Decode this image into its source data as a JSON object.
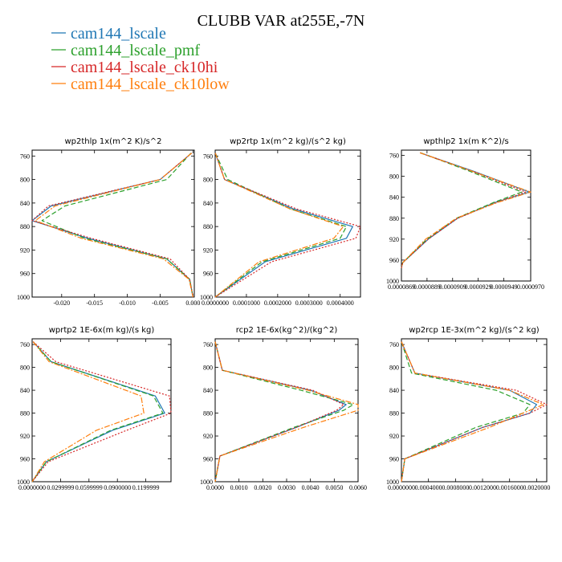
{
  "title": "CLUBB VAR at255E,-7N",
  "legend": [
    {
      "label": "cam144_lscale",
      "color": "#1f77b4",
      "dash": "solid"
    },
    {
      "label": "cam144_lscale_pmf",
      "color": "#2ca02c",
      "dash": "dashed"
    },
    {
      "label": "cam144_lscale_ck10hi",
      "color": "#d62728",
      "dash": "dotted"
    },
    {
      "label": "cam144_lscale_ck10low",
      "color": "#ff7f0e",
      "dash": "dashdot"
    }
  ],
  "chart_data": [
    {
      "type": "line",
      "title": "wp2thlp  1x(m^2 K)/s^2",
      "ylim": [
        1000,
        750
      ],
      "yticks": [
        "760",
        "800",
        "840",
        "880",
        "920",
        "960",
        "1000"
      ],
      "xlim": [
        -0.0245,
        0.0002
      ],
      "xticks": [
        "-0.020",
        "-0.015",
        "-0.010",
        "-0.005",
        "0.000"
      ],
      "y": [
        755,
        800,
        845,
        870,
        900,
        935,
        970,
        1000
      ],
      "series": [
        {
          "name": "cam144_lscale",
          "values": [
            -0.0002,
            -0.005,
            -0.0216,
            -0.0245,
            -0.016,
            -0.004,
            -0.0005,
            0.0
          ]
        },
        {
          "name": "cam144_lscale_pmf",
          "values": [
            -0.0003,
            -0.004,
            -0.0195,
            -0.023,
            -0.0165,
            -0.004,
            -0.0005,
            0.0
          ]
        },
        {
          "name": "cam144_lscale_ck10hi",
          "values": [
            -0.0002,
            -0.005,
            -0.022,
            -0.0245,
            -0.0155,
            -0.0035,
            -0.0005,
            0.0
          ]
        },
        {
          "name": "cam144_lscale_ck10low",
          "values": [
            -0.0002,
            -0.005,
            -0.021,
            -0.024,
            -0.017,
            -0.0045,
            -0.0006,
            0.0
          ]
        }
      ]
    },
    {
      "type": "line",
      "title": "wp2rtp  1x(m^2 kg)/(s^2 kg)",
      "ylim": [
        1000,
        750
      ],
      "yticks": [
        "760",
        "800",
        "840",
        "880",
        "920",
        "960",
        "1000"
      ],
      "xlim": [
        0,
        0.000465
      ],
      "xticks": [
        "0.0000000",
        "0.0001000",
        "0.0002000",
        "0.0003000",
        "0.0004000"
      ],
      "y": [
        755,
        800,
        850,
        880,
        900,
        940,
        1000
      ],
      "series": [
        {
          "name": "cam144_lscale",
          "values": [
            5e-07,
            3e-05,
            0.00025,
            0.00044,
            0.00042,
            0.00016,
            0.0
          ]
        },
        {
          "name": "cam144_lscale_pmf",
          "values": [
            5e-07,
            4e-05,
            0.00024,
            0.00042,
            0.0004,
            0.00015,
            0.0
          ]
        },
        {
          "name": "cam144_lscale_ck10hi",
          "values": [
            5e-07,
            3e-05,
            0.00026,
            0.000465,
            0.00045,
            0.00018,
            0.0
          ]
        },
        {
          "name": "cam144_lscale_ck10low",
          "values": [
            5e-07,
            3e-05,
            0.00024,
            0.00041,
            0.00038,
            0.00014,
            0.0
          ]
        }
      ]
    },
    {
      "type": "line",
      "title": "wpthlp2  1x(m K^2)/s",
      "ylim": [
        1000,
        750
      ],
      "yticks": [
        "760",
        "800",
        "840",
        "880",
        "920",
        "960",
        "1000"
      ],
      "xlim": [
        8.69e-05,
        9.7e-05
      ],
      "xticks": [
        "0.0000869",
        "0.0000889",
        "0.0000909",
        "0.0000929",
        "0.0000949",
        "0.0000970"
      ],
      "y": [
        755,
        790,
        830,
        850,
        880,
        920,
        965,
        975
      ],
      "series": [
        {
          "name": "cam144_lscale",
          "values": [
            8.835e-05,
            9.25e-05,
            9.69e-05,
            9.42e-05,
            9.13e-05,
            8.9e-05,
            8.7e-05,
            8.69e-05
          ]
        },
        {
          "name": "cam144_lscale_pmf",
          "values": [
            8.84e-05,
            9.22e-05,
            9.63e-05,
            9.41e-05,
            9.12e-05,
            8.89e-05,
            8.7e-05,
            8.69e-05
          ]
        },
        {
          "name": "cam144_lscale_ck10hi",
          "values": [
            8.835e-05,
            9.24e-05,
            9.66e-05,
            9.43e-05,
            9.13e-05,
            8.9e-05,
            8.7e-05,
            8.69e-05
          ]
        },
        {
          "name": "cam144_lscale_ck10low",
          "values": [
            8.835e-05,
            9.24e-05,
            9.7e-05,
            9.44e-05,
            9.12e-05,
            8.88e-05,
            8.7e-05,
            8.69e-05
          ]
        }
      ]
    },
    {
      "type": "line",
      "title": "wprtp2  1E-6x(m kg)/(s kg)",
      "ylim": [
        1000,
        750
      ],
      "yticks": [
        "760",
        "800",
        "840",
        "880",
        "920",
        "960",
        "1000"
      ],
      "xlim": [
        0,
        0.1466
      ],
      "xticks": [
        "0.0000000",
        "0.0299999",
        "0.0599999",
        "0.0900000",
        "0.1199999"
      ],
      "y": [
        755,
        790,
        850,
        880,
        910,
        965,
        1000
      ],
      "series": [
        {
          "name": "cam144_lscale",
          "values": [
            0.001,
            0.02,
            0.13,
            0.14,
            0.085,
            0.015,
            0.0
          ]
        },
        {
          "name": "cam144_lscale_pmf",
          "values": [
            0.001,
            0.02,
            0.128,
            0.138,
            0.083,
            0.015,
            0.0
          ]
        },
        {
          "name": "cam144_lscale_ck10hi",
          "values": [
            0.001,
            0.025,
            0.145,
            0.1466,
            0.1,
            0.017,
            0.0
          ]
        },
        {
          "name": "cam144_lscale_ck10low",
          "values": [
            0.001,
            0.018,
            0.115,
            0.118,
            0.068,
            0.013,
            0.0
          ]
        }
      ]
    },
    {
      "type": "line",
      "title": "rcp2  1E-6x(kg^2)/(kg^2)",
      "ylim": [
        1000,
        750
      ],
      "yticks": [
        "760",
        "800",
        "840",
        "880",
        "920",
        "960",
        "1000"
      ],
      "xlim": [
        0,
        0.006
      ],
      "xticks": [
        "0.0000",
        "0.0010",
        "0.0020",
        "0.0030",
        "0.0040",
        "0.0050",
        "0.0060"
      ],
      "y": [
        755,
        805,
        840,
        865,
        875,
        905,
        955,
        1000
      ],
      "series": [
        {
          "name": "cam144_lscale",
          "values": [
            0.0,
            0.0003,
            0.004,
            0.0055,
            0.0052,
            0.0034,
            0.0002,
            0.0
          ]
        },
        {
          "name": "cam144_lscale_pmf",
          "values": [
            0.0,
            0.0003,
            0.0036,
            0.0058,
            0.0054,
            0.0033,
            0.0002,
            0.0
          ]
        },
        {
          "name": "cam144_lscale_ck10hi",
          "values": [
            0.0,
            0.0003,
            0.0041,
            0.0054,
            0.0051,
            0.0034,
            0.0002,
            0.0
          ]
        },
        {
          "name": "cam144_lscale_ck10low",
          "values": [
            0.0,
            0.0003,
            0.0039,
            0.006,
            0.006,
            0.0037,
            0.0002,
            0.0
          ]
        }
      ]
    },
    {
      "type": "line",
      "title": "wp2rcp  1E-3x(m^2 kg)/(s^2 kg)",
      "ylim": [
        1000,
        750
      ],
      "yticks": [
        "760",
        "800",
        "840",
        "880",
        "920",
        "960",
        "1000"
      ],
      "xlim": [
        0,
        0.00215
      ],
      "xticks": [
        "0.0000000",
        "0.0004000",
        "0.0008000",
        "0.0012000",
        "0.0016000",
        "0.0020000"
      ],
      "y": [
        755,
        810,
        840,
        865,
        880,
        905,
        960,
        1000
      ],
      "series": [
        {
          "name": "cam144_lscale",
          "values": [
            0.0,
            0.0002,
            0.0016,
            0.002,
            0.0019,
            0.0012,
            5e-05,
            0.0
          ]
        },
        {
          "name": "cam144_lscale_pmf",
          "values": [
            0.0,
            0.00015,
            0.0014,
            0.0019,
            0.0018,
            0.0011,
            5e-05,
            0.0
          ]
        },
        {
          "name": "cam144_lscale_ck10hi",
          "values": [
            0.0,
            0.0002,
            0.0017,
            0.00215,
            0.0019,
            0.0012,
            5e-05,
            0.0
          ]
        },
        {
          "name": "cam144_lscale_ck10low",
          "values": [
            0.0,
            0.0002,
            0.0016,
            0.0021,
            0.0018,
            0.0013,
            5e-05,
            0.0
          ]
        }
      ]
    }
  ]
}
